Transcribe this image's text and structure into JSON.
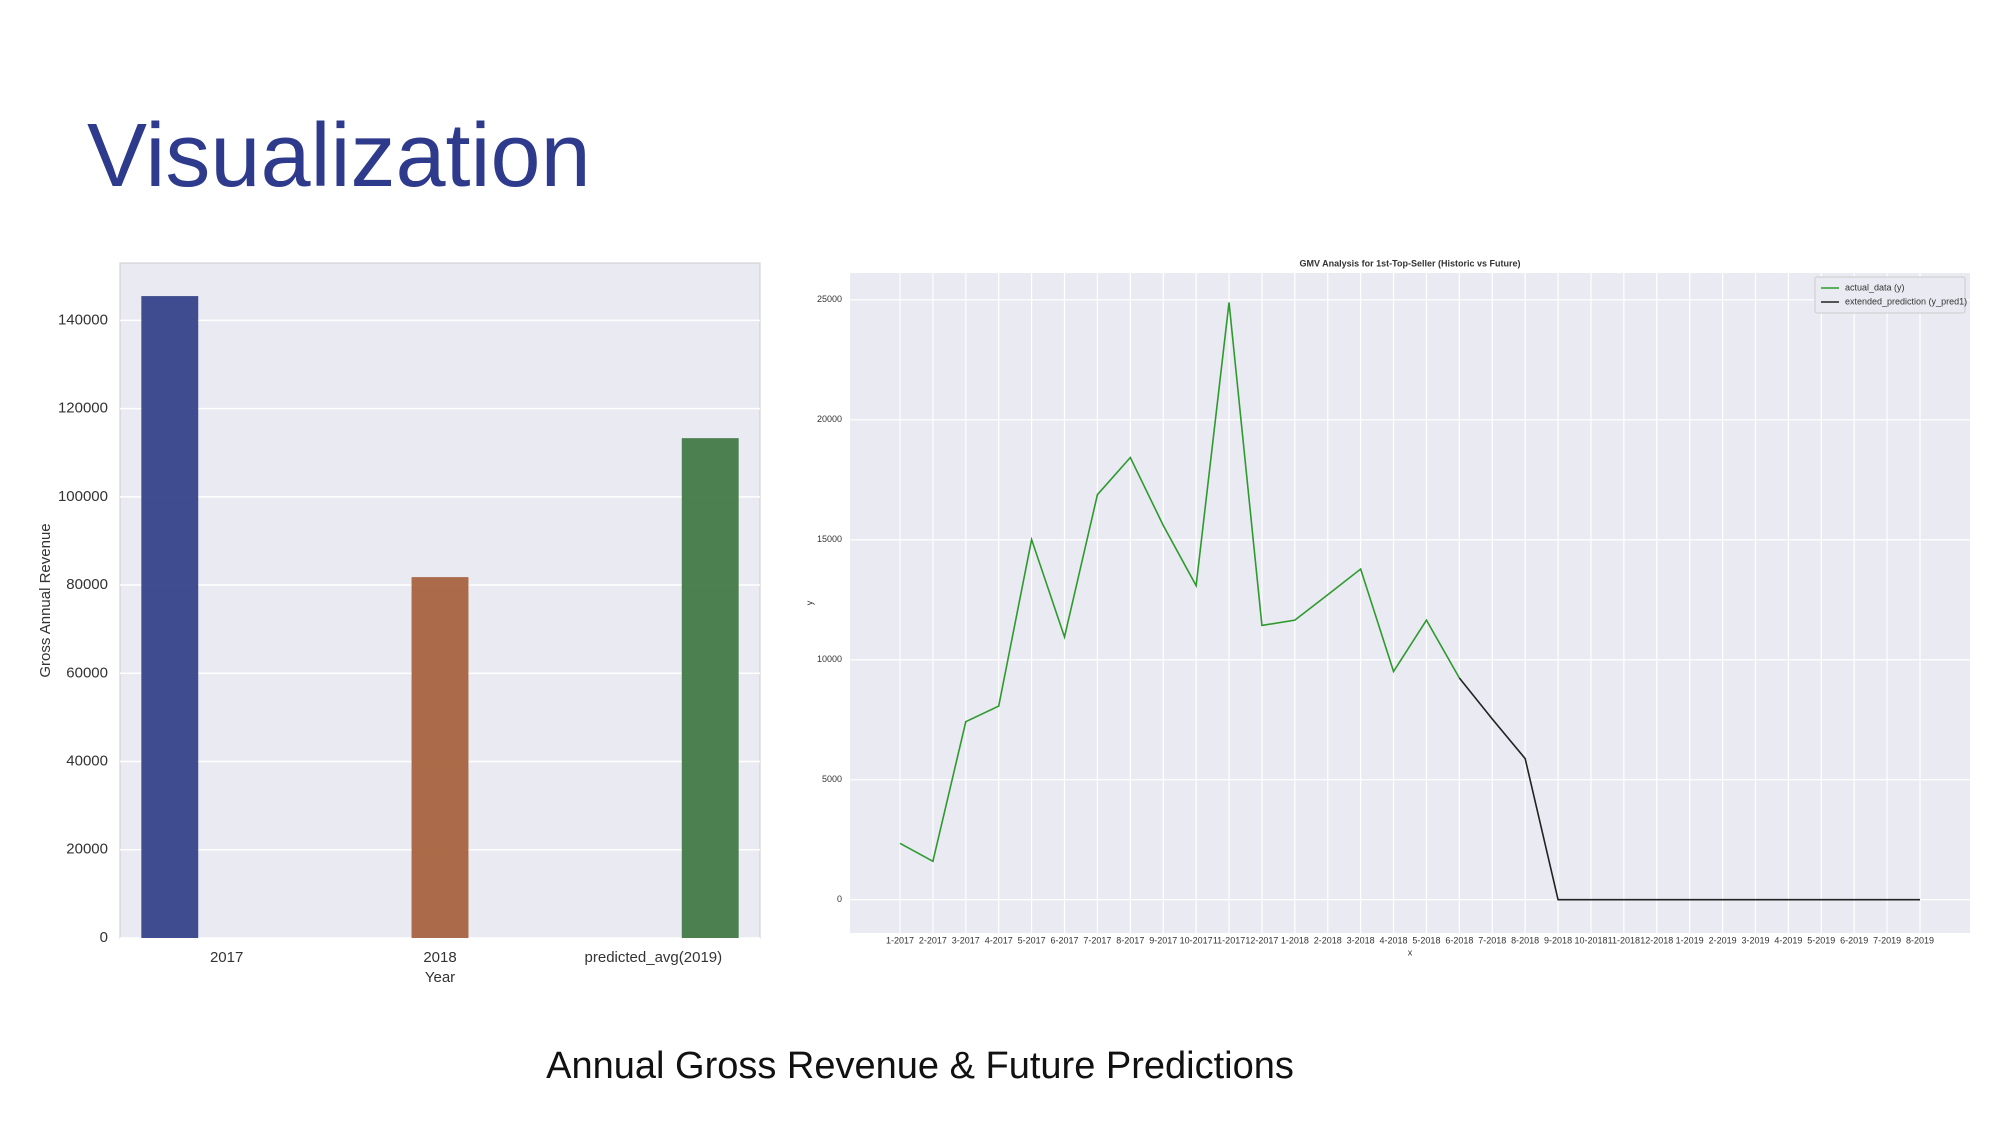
{
  "title": "Visualization",
  "caption": "Annual Gross Revenue & Future Predictions",
  "chart_data": [
    {
      "type": "bar",
      "xlabel": "Year",
      "ylabel": "Gross Annual Revenue",
      "categories": [
        "2017",
        "2018",
        "predicted_avg(2019)"
      ],
      "values": [
        145500,
        81800,
        113300
      ],
      "colors": [
        "#36438a",
        "#a8633f",
        "#437a47"
      ],
      "ylim": [
        0,
        153000
      ],
      "yticks": [
        0,
        20000,
        40000,
        60000,
        80000,
        100000,
        120000,
        140000
      ],
      "grid": true
    },
    {
      "type": "line",
      "title": "GMV Analysis for 1st-Top-Seller (Historic vs Future)",
      "xlabel": "x",
      "ylabel": "y",
      "categories": [
        "1-2017",
        "2-2017",
        "3-2017",
        "4-2017",
        "5-2017",
        "6-2017",
        "7-2017",
        "8-2017",
        "9-2017",
        "10-2017",
        "11-2017",
        "12-2017",
        "1-2018",
        "2-2018",
        "3-2018",
        "4-2018",
        "5-2018",
        "6-2018",
        "7-2018",
        "8-2018",
        "9-2018",
        "10-2018",
        "11-2018",
        "12-2018",
        "1-2019",
        "2-2019",
        "3-2019",
        "4-2019",
        "5-2019",
        "6-2019",
        "7-2019",
        "8-2019"
      ],
      "series": [
        {
          "name": "actual_data (y)",
          "color": "#2e9a2e",
          "values": [
            2350,
            1600,
            7420,
            8070,
            15010,
            10950,
            16880,
            18430,
            15600,
            13090,
            24890,
            11430,
            11650,
            12710,
            13780,
            9510,
            11650,
            9240,
            null,
            null,
            null,
            null,
            null,
            null,
            null,
            null,
            null,
            null,
            null,
            null,
            null,
            null
          ]
        },
        {
          "name": "extended_prediction (y_pred1)",
          "color": "#222222",
          "values": [
            null,
            null,
            null,
            null,
            null,
            null,
            null,
            null,
            null,
            null,
            null,
            null,
            null,
            null,
            null,
            null,
            null,
            9240,
            7530,
            5880,
            0,
            0,
            0,
            0,
            0,
            0,
            0,
            0,
            0,
            0,
            0,
            0
          ]
        }
      ],
      "ylim": [
        -1390,
        26120
      ],
      "yticks": [
        0,
        5000,
        10000,
        15000,
        20000,
        25000
      ],
      "grid": true,
      "legend": "upper right"
    }
  ]
}
